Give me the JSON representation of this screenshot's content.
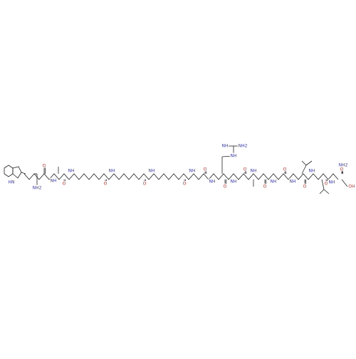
{
  "atoms": [
    "HN",
    "O",
    "NH2",
    "NH",
    "O",
    "NH",
    "O",
    "NH",
    "O",
    "NH",
    "O",
    "NH",
    "O",
    "NH",
    "O",
    "NH",
    "NH2",
    "NH",
    "NH",
    "O",
    "NH",
    "O",
    "NH",
    "O",
    "NH",
    "O",
    "NH",
    "O",
    "NH",
    "O",
    "NH2",
    "OH"
  ]
}
